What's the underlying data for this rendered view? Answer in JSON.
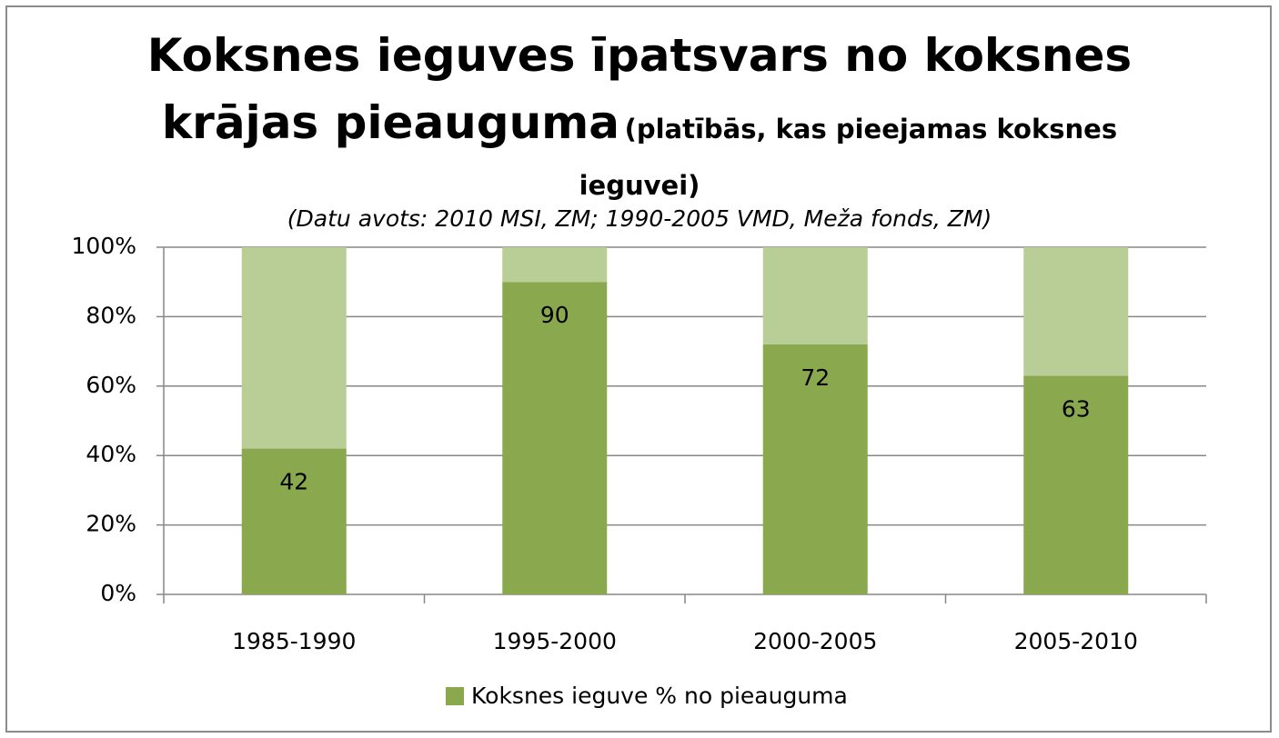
{
  "chart_data": {
    "type": "stacked_bar",
    "title": "Koksnes ieguves īpatsvars no koksnes krājas pieauguma",
    "title_note": "(platībās, kas pieejamas koksnes ieguvei)",
    "subtitle": "(Datu avots: 2010 MSI, ZM; 1990-2005 VMD, Meža fonds, ZM)",
    "categories": [
      "1985-1990",
      "1995-2000",
      "2000-2005",
      "2005-2010"
    ],
    "series": [
      {
        "name": "Koksnes ieguve % no pieauguma",
        "color": "#8aa84e",
        "values": [
          42,
          90,
          72,
          63
        ]
      },
      {
        "color": "#b9cd96",
        "values": [
          58,
          10,
          28,
          37
        ]
      }
    ],
    "ylim": [
      0,
      100
    ],
    "yticks": [
      {
        "value": 0,
        "label": "0%"
      },
      {
        "value": 20,
        "label": "20%"
      },
      {
        "value": 40,
        "label": "40%"
      },
      {
        "value": 60,
        "label": "60%"
      },
      {
        "value": 80,
        "label": "80%"
      },
      {
        "value": 100,
        "label": "100%"
      }
    ],
    "grid": true,
    "legend": "bottom"
  }
}
